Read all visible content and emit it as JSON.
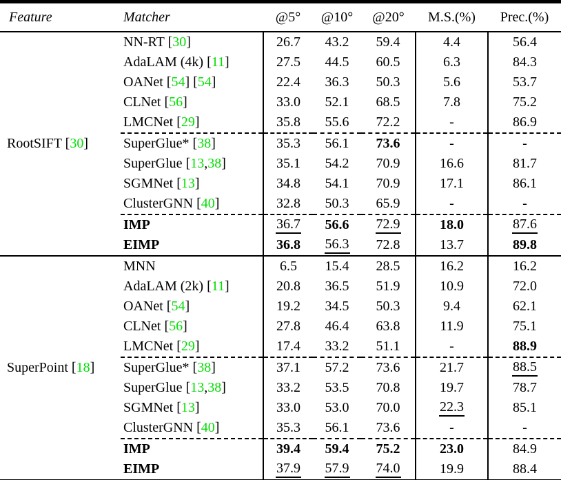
{
  "colors": {
    "citation_green": "#00dd00",
    "text": "#000000",
    "background": "#ffffff"
  },
  "table": {
    "headers": [
      "Feature",
      "Matcher",
      "@5°",
      "@10°",
      "@20°",
      "M.S.(%)",
      "Prec.(%)"
    ],
    "groups": [
      {
        "feature": {
          "name": "RootSIFT",
          "cites": [
            "30"
          ]
        },
        "rows": [
          {
            "matcher": {
              "name": "NN-RT",
              "cites": [
                "30"
              ]
            },
            "cells": [
              [
                "26.7",
                ""
              ],
              [
                "43.2",
                ""
              ],
              [
                "59.4",
                ""
              ],
              [
                "4.4",
                ""
              ],
              [
                "56.4",
                ""
              ]
            ]
          },
          {
            "matcher": {
              "name": "AdaLAM (4k)",
              "cites": [
                "11"
              ]
            },
            "cells": [
              [
                "27.5",
                ""
              ],
              [
                "44.5",
                ""
              ],
              [
                "60.5",
                ""
              ],
              [
                "6.3",
                ""
              ],
              [
                "84.3",
                ""
              ]
            ]
          },
          {
            "matcher": {
              "name": "OANet",
              "cites": [
                "54",
                "54"
              ]
            },
            "cells": [
              [
                "22.4",
                ""
              ],
              [
                "36.3",
                ""
              ],
              [
                "50.3",
                ""
              ],
              [
                "5.6",
                ""
              ],
              [
                "53.7",
                ""
              ]
            ]
          },
          {
            "matcher": {
              "name": "CLNet",
              "cites": [
                "56"
              ]
            },
            "cells": [
              [
                "33.0",
                ""
              ],
              [
                "52.1",
                ""
              ],
              [
                "68.5",
                ""
              ],
              [
                "7.8",
                ""
              ],
              [
                "75.2",
                ""
              ]
            ]
          },
          {
            "matcher": {
              "name": "LMCNet",
              "cites": [
                "29"
              ]
            },
            "dash_after": true,
            "cells": [
              [
                "35.8",
                ""
              ],
              [
                "55.6",
                ""
              ],
              [
                "72.2",
                ""
              ],
              [
                "-",
                ""
              ],
              [
                "86.9",
                ""
              ]
            ]
          },
          {
            "matcher": {
              "name": "SuperGlue*",
              "cites": [
                "38"
              ]
            },
            "cells": [
              [
                "35.3",
                ""
              ],
              [
                "56.1",
                ""
              ],
              [
                "73.6",
                "b"
              ],
              [
                "-",
                ""
              ],
              [
                "-",
                ""
              ]
            ]
          },
          {
            "matcher": {
              "name": "SuperGlue",
              "cites": [
                "13,38"
              ]
            },
            "cells": [
              [
                "35.1",
                ""
              ],
              [
                "54.2",
                ""
              ],
              [
                "70.9",
                ""
              ],
              [
                "16.6",
                ""
              ],
              [
                "81.7",
                ""
              ]
            ]
          },
          {
            "matcher": {
              "name": "SGMNet",
              "cites": [
                "13"
              ]
            },
            "cells": [
              [
                "34.8",
                ""
              ],
              [
                "54.1",
                ""
              ],
              [
                "70.9",
                ""
              ],
              [
                "17.1",
                ""
              ],
              [
                "86.1",
                ""
              ]
            ]
          },
          {
            "matcher": {
              "name": "ClusterGNN",
              "cites": [
                "40"
              ]
            },
            "dash_after": true,
            "cells": [
              [
                "32.8",
                ""
              ],
              [
                "50.3",
                ""
              ],
              [
                "65.9",
                ""
              ],
              [
                "-",
                ""
              ],
              [
                "-",
                ""
              ]
            ]
          },
          {
            "matcher": {
              "name": "IMP",
              "cites": [],
              "bold": true
            },
            "cells": [
              [
                "36.7",
                "u"
              ],
              [
                "56.6",
                "b"
              ],
              [
                "72.9",
                "u"
              ],
              [
                "18.0",
                "b"
              ],
              [
                "87.6",
                "u"
              ]
            ]
          },
          {
            "matcher": {
              "name": "EIMP",
              "cites": [],
              "bold": true
            },
            "cells": [
              [
                "36.8",
                "b"
              ],
              [
                "56.3",
                "u"
              ],
              [
                "72.8",
                ""
              ],
              [
                "13.7",
                ""
              ],
              [
                "89.8",
                "b"
              ]
            ]
          }
        ]
      },
      {
        "feature": {
          "name": "SuperPoint",
          "cites": [
            "18"
          ]
        },
        "rows": [
          {
            "matcher": {
              "name": "MNN",
              "cites": []
            },
            "cells": [
              [
                "6.5",
                ""
              ],
              [
                "15.4",
                ""
              ],
              [
                "28.5",
                ""
              ],
              [
                "16.2",
                ""
              ],
              [
                "16.2",
                ""
              ]
            ]
          },
          {
            "matcher": {
              "name": "AdaLAM (2k)",
              "cites": [
                "11"
              ]
            },
            "cells": [
              [
                "20.8",
                ""
              ],
              [
                "36.5",
                ""
              ],
              [
                "51.9",
                ""
              ],
              [
                "10.9",
                ""
              ],
              [
                "72.0",
                ""
              ]
            ]
          },
          {
            "matcher": {
              "name": "OANet",
              "cites": [
                "54"
              ]
            },
            "cells": [
              [
                "19.2",
                ""
              ],
              [
                "34.5",
                ""
              ],
              [
                "50.3",
                ""
              ],
              [
                "9.4",
                ""
              ],
              [
                "62.1",
                ""
              ]
            ]
          },
          {
            "matcher": {
              "name": "CLNet",
              "cites": [
                "56"
              ]
            },
            "cells": [
              [
                "27.8",
                ""
              ],
              [
                "46.4",
                ""
              ],
              [
                "63.8",
                ""
              ],
              [
                "11.9",
                ""
              ],
              [
                "75.1",
                ""
              ]
            ]
          },
          {
            "matcher": {
              "name": "LMCNet",
              "cites": [
                "29"
              ]
            },
            "dash_after": true,
            "cells": [
              [
                "17.4",
                ""
              ],
              [
                "33.2",
                ""
              ],
              [
                "51.1",
                ""
              ],
              [
                "-",
                ""
              ],
              [
                "88.9",
                "b"
              ]
            ]
          },
          {
            "matcher": {
              "name": "SuperGlue*",
              "cites": [
                "38"
              ]
            },
            "cells": [
              [
                "37.1",
                ""
              ],
              [
                "57.2",
                ""
              ],
              [
                "73.6",
                ""
              ],
              [
                "21.7",
                ""
              ],
              [
                "88.5",
                "u"
              ]
            ]
          },
          {
            "matcher": {
              "name": "SuperGlue",
              "cites": [
                "13,38"
              ]
            },
            "cells": [
              [
                "33.2",
                ""
              ],
              [
                "53.5",
                ""
              ],
              [
                "70.8",
                ""
              ],
              [
                "19.7",
                ""
              ],
              [
                "78.7",
                ""
              ]
            ]
          },
          {
            "matcher": {
              "name": "SGMNet",
              "cites": [
                "13"
              ]
            },
            "cells": [
              [
                "33.0",
                ""
              ],
              [
                "53.0",
                ""
              ],
              [
                "70.0",
                ""
              ],
              [
                "22.3",
                "u"
              ],
              [
                "85.1",
                ""
              ]
            ]
          },
          {
            "matcher": {
              "name": "ClusterGNN",
              "cites": [
                "40"
              ]
            },
            "dash_after": true,
            "cells": [
              [
                "35.3",
                ""
              ],
              [
                "56.1",
                ""
              ],
              [
                "73.6",
                ""
              ],
              [
                "-",
                ""
              ],
              [
                "-",
                ""
              ]
            ]
          },
          {
            "matcher": {
              "name": "IMP",
              "cites": [],
              "bold": true
            },
            "cells": [
              [
                "39.4",
                "b"
              ],
              [
                "59.4",
                "b"
              ],
              [
                "75.2",
                "b"
              ],
              [
                "23.0",
                "b"
              ],
              [
                "84.9",
                ""
              ]
            ]
          },
          {
            "matcher": {
              "name": "EIMP",
              "cites": [],
              "bold": true
            },
            "cells": [
              [
                "37.9",
                "u"
              ],
              [
                "57.9",
                "u"
              ],
              [
                "74.0",
                "u"
              ],
              [
                "19.9",
                ""
              ],
              [
                "88.4",
                ""
              ]
            ]
          }
        ]
      }
    ]
  }
}
